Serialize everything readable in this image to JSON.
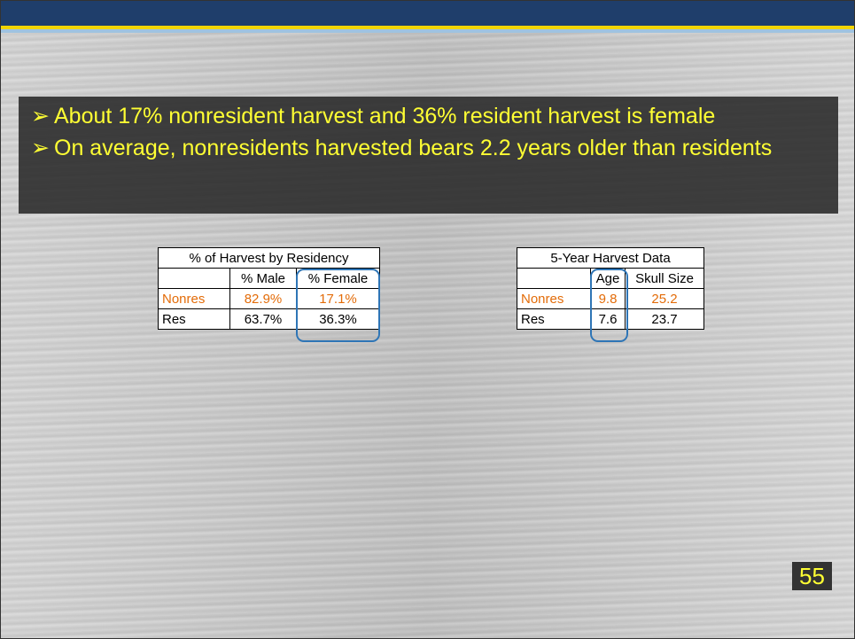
{
  "bullets": [
    "About 17% nonresident harvest and 36% resident harvest is female",
    "On average, nonresidents harvested bears 2.2 years older than residents"
  ],
  "tables": [
    {
      "title": "% of Harvest by Residency",
      "columns": [
        "% Male",
        "% Female"
      ],
      "rows": [
        [
          "Nonres",
          "82.9%",
          "17.1%"
        ],
        [
          "Res",
          "63.7%",
          "36.3%"
        ]
      ]
    },
    {
      "title": "5-Year Harvest Data",
      "columns": [
        "Age",
        "Skull Size"
      ],
      "rows": [
        [
          "Nonres",
          "9.8",
          "25.2"
        ],
        [
          "Res",
          "7.6",
          "23.7"
        ]
      ]
    }
  ],
  "page_number": "55"
}
